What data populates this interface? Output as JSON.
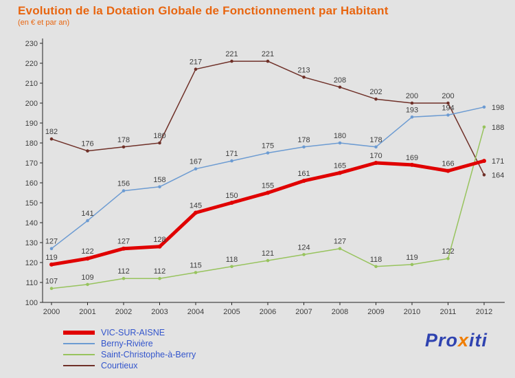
{
  "title": "Evolution de la Dotation Globale de Fonctionnement par Habitant",
  "subtitle": "(en € et par an)",
  "chart_data": {
    "type": "line",
    "x": [
      2000,
      2001,
      2002,
      2003,
      2004,
      2005,
      2006,
      2007,
      2008,
      2009,
      2010,
      2011,
      2012
    ],
    "series": [
      {
        "name": "VIC-SUR-AISNE",
        "color": "#e00000",
        "width": 5,
        "values": [
          119,
          122,
          127,
          128,
          145,
          150,
          155,
          161,
          165,
          170,
          169,
          166,
          171
        ]
      },
      {
        "name": "Berny-Rivière",
        "color": "#6c9bd2",
        "width": 1.5,
        "values": [
          127,
          141,
          156,
          158,
          167,
          171,
          175,
          178,
          180,
          178,
          193,
          194,
          198
        ]
      },
      {
        "name": "Saint-Christophe-à-Berry",
        "color": "#97c35d",
        "width": 1.5,
        "values": [
          107,
          109,
          112,
          112,
          115,
          118,
          121,
          124,
          127,
          118,
          119,
          122,
          188
        ]
      },
      {
        "name": "Courtieux",
        "color": "#6f3028",
        "width": 1.5,
        "values": [
          182,
          176,
          178,
          180,
          217,
          221,
          221,
          213,
          208,
          202,
          200,
          200,
          164
        ]
      }
    ],
    "ylim": [
      100,
      230
    ],
    "ytick_step": 10,
    "grid": false,
    "legend_position": "bottom-left",
    "label_color": "#3d3d3d",
    "axis_color": "#222222"
  },
  "logo": {
    "parts": [
      {
        "text": "Pro",
        "color": "#2f43b0"
      },
      {
        "text": "x",
        "color": "#f07d00"
      },
      {
        "text": "iti",
        "color": "#2f43b0"
      }
    ]
  }
}
